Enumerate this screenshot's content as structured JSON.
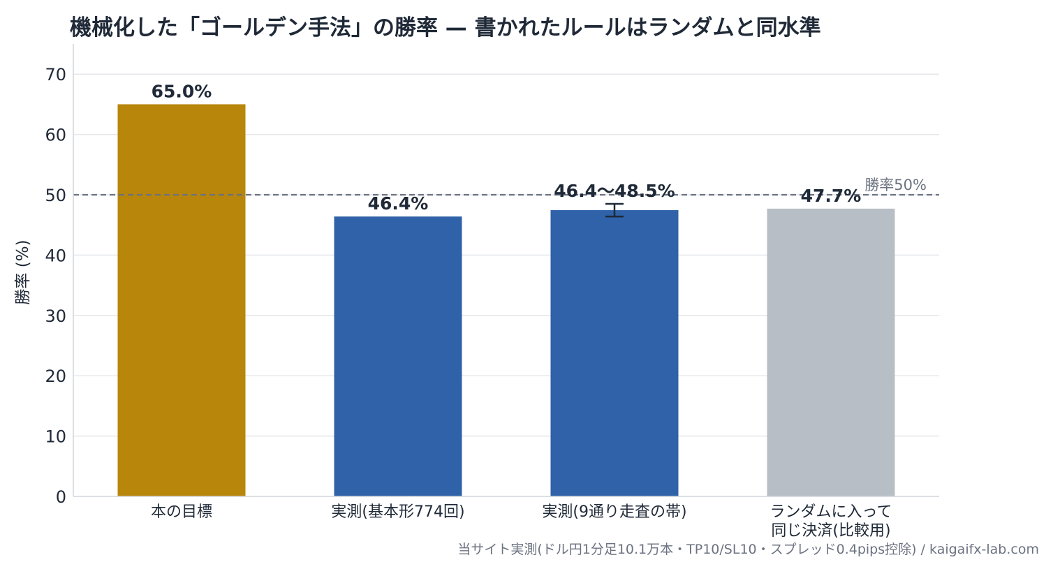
{
  "chart_data": {
    "type": "bar",
    "title": "機械化した「ゴールデン手法」の勝率 — 書かれたルールはランダムと同水準",
    "ylabel": "勝率 (%)",
    "xlabel": "",
    "ylim": [
      0,
      75
    ],
    "yticks": [
      0,
      10,
      20,
      30,
      40,
      50,
      60,
      70
    ],
    "grid": true,
    "categories": [
      "本の目標",
      "実測(基本形774回)",
      "実測(9通り走査の帯)",
      "ランダムに入って\n同じ決済(比較用)"
    ],
    "values": [
      65.0,
      46.4,
      47.45,
      47.7
    ],
    "error_range": [
      null,
      null,
      [
        46.4,
        48.5
      ],
      null
    ],
    "data_labels": [
      "65.0%",
      "46.4%",
      "46.4〜48.5%",
      "47.7%"
    ],
    "colors": [
      "#b8860b",
      "#2f62a8",
      "#2f62a8",
      "#b8bec6"
    ],
    "reference_line": {
      "value": 50,
      "label": "勝率50%",
      "color": "#6b7280"
    }
  },
  "source_note": "当サイト実測(ドル円1分足10.1万本・TP10/SL10・スプレッド0.4pips控除) / kaigaifx-lab.com"
}
